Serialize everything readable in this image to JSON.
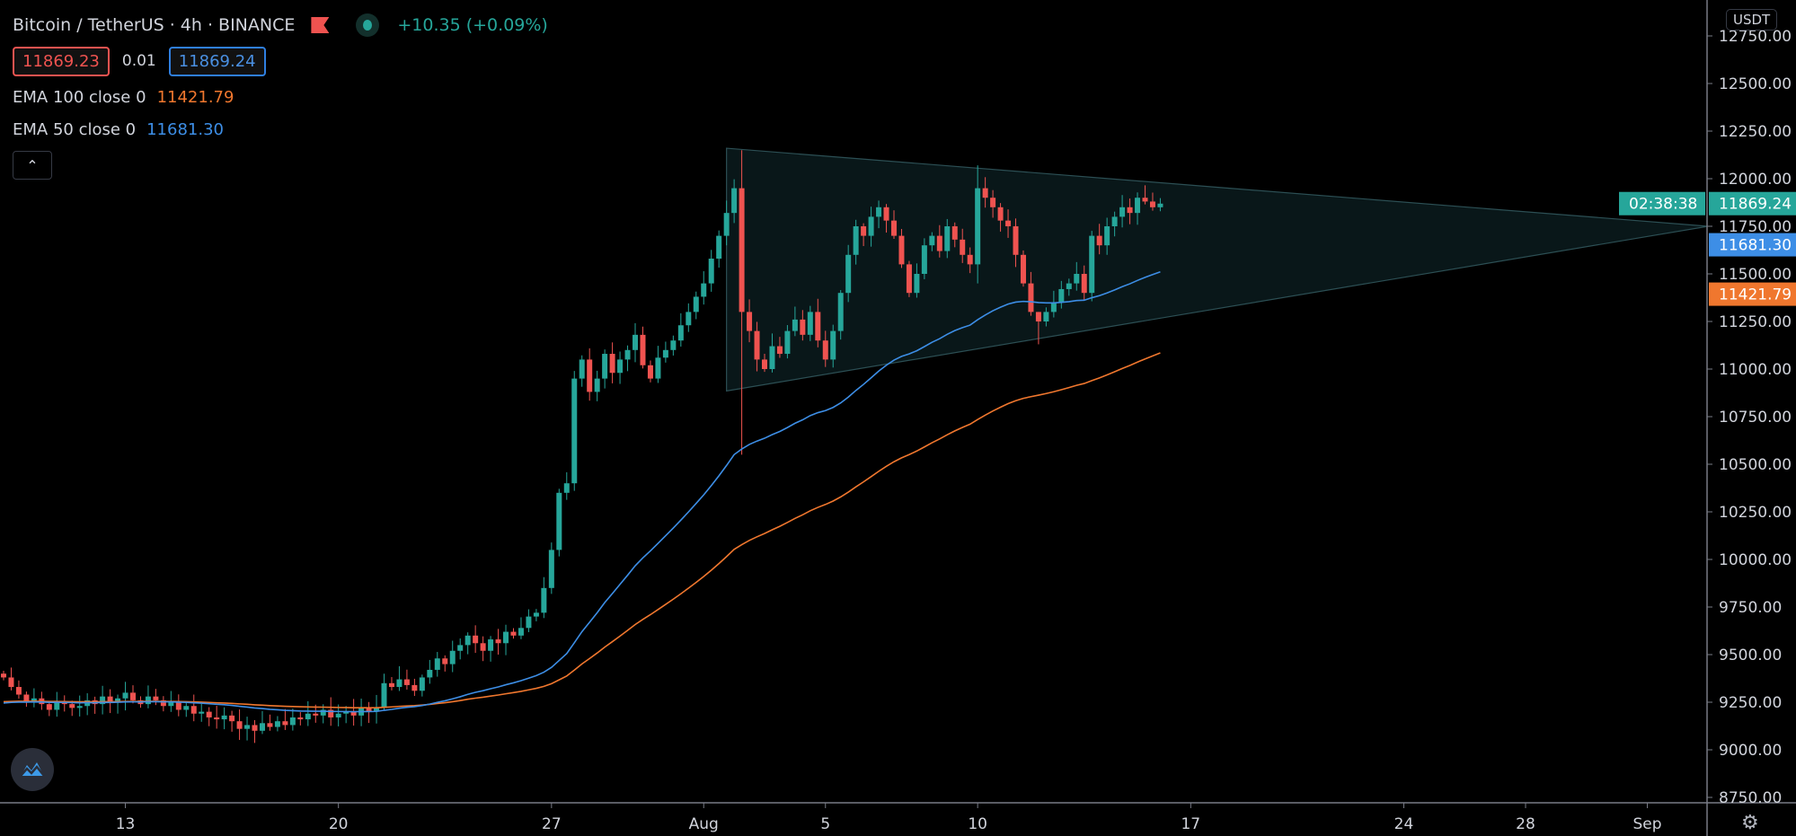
{
  "header": {
    "title": "Bitcoin / TetherUS · 4h · BINANCE",
    "change": "+10.35 (+0.09%)",
    "bid": "11869.23",
    "spread": "0.01",
    "ask": "11869.24",
    "collapse_icon": "chevron-up-icon"
  },
  "indicators": [
    {
      "label": "EMA 100 close 0",
      "value": "11421.79",
      "color": "#f0772e"
    },
    {
      "label": "EMA 50 close 0",
      "value": "11681.30",
      "color": "#3d8ee6"
    }
  ],
  "price_axis": {
    "currency": "USDT",
    "last_price": "11869.24",
    "countdown": "02:38:38",
    "ema50_label": "11681.30",
    "ema100_label": "11421.79"
  },
  "colors": {
    "up": "#26a69a",
    "down": "#ef5350",
    "ema50": "#3d8ee6",
    "ema100": "#f0772e",
    "triangle": "#1d3a3d"
  },
  "chart_data": {
    "type": "candlestick",
    "title": "Bitcoin / TetherUS · 4h · BINANCE",
    "ylim": [
      8650,
      12850
    ],
    "yticks": [
      "12750.00",
      "12500.00",
      "12250.00",
      "12000.00",
      "11750.00",
      "11500.00",
      "11250.00",
      "11000.00",
      "10750.00",
      "10500.00",
      "10250.00",
      "10000.00",
      "9750.00",
      "9500.00",
      "9250.00",
      "9000.00",
      "8750.00"
    ],
    "ytick_values": [
      12750,
      12500,
      12250,
      12000,
      11750,
      11500,
      11250,
      11000,
      10750,
      10500,
      10250,
      10000,
      9750,
      9500,
      9250,
      9000,
      8750
    ],
    "xticks": [
      {
        "label": "13",
        "candle": 16
      },
      {
        "label": "20",
        "candle": 44
      },
      {
        "label": "27",
        "candle": 72
      },
      {
        "label": "Aug",
        "candle": 92
      },
      {
        "label": "5",
        "candle": 108
      },
      {
        "label": "10",
        "candle": 128
      },
      {
        "label": "17",
        "candle": 156
      },
      {
        "label": "24",
        "candle": 184
      },
      {
        "label": "28",
        "candle": 200
      },
      {
        "label": "Sep",
        "candle": 216
      }
    ],
    "start_price": 9400,
    "close": [
      9380,
      9330,
      9290,
      9250,
      9270,
      9240,
      9210,
      9250,
      9240,
      9220,
      9230,
      9260,
      9240,
      9280,
      9250,
      9270,
      9300,
      9260,
      9240,
      9280,
      9260,
      9230,
      9250,
      9210,
      9230,
      9190,
      9200,
      9170,
      9160,
      9180,
      9150,
      9110,
      9130,
      9100,
      9140,
      9120,
      9150,
      9130,
      9170,
      9160,
      9190,
      9180,
      9210,
      9170,
      9190,
      9200,
      9180,
      9220,
      9200,
      9220,
      9350,
      9330,
      9370,
      9340,
      9310,
      9380,
      9420,
      9480,
      9450,
      9520,
      9550,
      9600,
      9560,
      9520,
      9580,
      9560,
      9620,
      9600,
      9640,
      9700,
      9720,
      9850,
      10050,
      10350,
      10400,
      10950,
      11050,
      10880,
      10950,
      11080,
      10980,
      11050,
      11100,
      11180,
      11020,
      10950,
      11060,
      11100,
      11150,
      11230,
      11300,
      11380,
      11450,
      11580,
      11700,
      11820,
      11950,
      11300,
      11200,
      11050,
      11000,
      11120,
      11080,
      11200,
      11260,
      11180,
      11300,
      11150,
      11050,
      11200,
      11400,
      11600,
      11750,
      11700,
      11800,
      11850,
      11780,
      11700,
      11550,
      11400,
      11500,
      11650,
      11700,
      11620,
      11750,
      11680,
      11600,
      11550,
      11950,
      11900,
      11850,
      11780,
      11750,
      11600,
      11450,
      11300,
      11250,
      11300,
      11350,
      11420,
      11450,
      11500,
      11400,
      11700,
      11650,
      11750,
      11800,
      11850,
      11820,
      11900,
      11880,
      11850,
      11869
    ],
    "wick_overrides": [
      {
        "candle": 97,
        "high": 12150,
        "low": 10550
      },
      {
        "candle": 128,
        "high": 12070,
        "low": 11450
      },
      {
        "candle": 136,
        "high": 11300,
        "low": 11130
      }
    ],
    "ema_periods": [
      50,
      100
    ],
    "drawings": [
      {
        "type": "triangle",
        "points": [
          {
            "candle": 95,
            "price": 12160
          },
          {
            "candle": 224,
            "price": 11750
          },
          {
            "candle": 95,
            "price": 10885
          }
        ]
      }
    ]
  }
}
